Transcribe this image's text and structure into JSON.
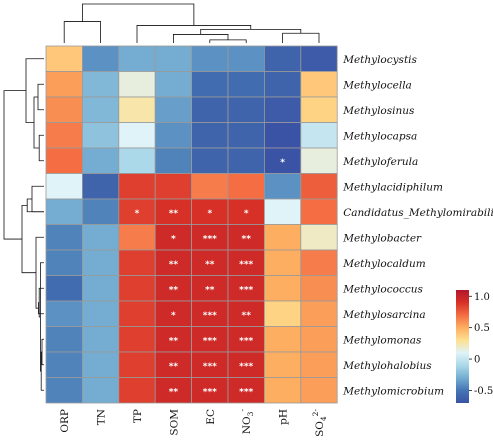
{
  "chart_data": {
    "type": "heatmap",
    "rows": [
      "Methylocystis",
      "Methylocella",
      "Methylosinus",
      "Methylocapsa",
      "Methyloferula",
      "Methylacidiphilum",
      "Candidatus_Methylomirabilis",
      "Methylobacter",
      "Methylocaldum",
      "Methylococcus",
      "Methylosarcina",
      "Methylomonas",
      "Methylohalobius",
      "Methylomicrobium"
    ],
    "columns": [
      {
        "text": "ORP"
      },
      {
        "text": "TN"
      },
      {
        "text": "TP"
      },
      {
        "text": "SOM"
      },
      {
        "text": "EC"
      },
      {
        "text": "NO",
        "sub": "3",
        "sup": "-"
      },
      {
        "text": "pH"
      },
      {
        "text": "SO",
        "sub": "4",
        "sup": "2-"
      }
    ],
    "values": [
      [
        0.4,
        -0.4,
        -0.3,
        -0.3,
        -0.4,
        -0.4,
        -0.6,
        -0.65
      ],
      [
        0.55,
        -0.25,
        0.15,
        -0.3,
        -0.55,
        -0.55,
        -0.6,
        0.4
      ],
      [
        0.6,
        -0.25,
        0.25,
        -0.35,
        -0.6,
        -0.6,
        -0.65,
        0.35
      ],
      [
        0.65,
        -0.2,
        0.1,
        -0.4,
        -0.6,
        -0.6,
        -0.7,
        0.0
      ],
      [
        0.7,
        -0.3,
        -0.1,
        -0.45,
        -0.6,
        -0.6,
        -0.8,
        0.15
      ],
      [
        0.1,
        -0.6,
        0.85,
        0.85,
        0.65,
        0.7,
        -0.4,
        0.75
      ],
      [
        -0.3,
        -0.45,
        0.85,
        0.9,
        0.9,
        0.9,
        0.1,
        0.7
      ],
      [
        -0.45,
        -0.3,
        0.65,
        0.95,
        0.95,
        0.95,
        0.5,
        0.2
      ],
      [
        -0.45,
        -0.3,
        0.85,
        0.95,
        0.95,
        0.95,
        0.5,
        0.65
      ],
      [
        -0.55,
        -0.3,
        0.85,
        0.95,
        0.95,
        0.95,
        0.5,
        0.6
      ],
      [
        -0.4,
        -0.3,
        0.85,
        0.95,
        0.95,
        0.95,
        0.35,
        0.55
      ],
      [
        -0.45,
        -0.3,
        0.85,
        0.95,
        0.95,
        0.95,
        0.5,
        0.55
      ],
      [
        -0.45,
        -0.3,
        0.85,
        0.95,
        0.95,
        0.95,
        0.5,
        0.55
      ],
      [
        -0.45,
        -0.3,
        0.85,
        0.95,
        0.95,
        0.95,
        0.5,
        0.55
      ]
    ],
    "significance": [
      [
        "",
        "",
        "",
        "",
        "",
        "",
        "",
        ""
      ],
      [
        "",
        "",
        "",
        "",
        "",
        "",
        "",
        ""
      ],
      [
        "",
        "",
        "",
        "",
        "",
        "",
        "",
        ""
      ],
      [
        "",
        "",
        "",
        "",
        "",
        "",
        "",
        ""
      ],
      [
        "",
        "",
        "",
        "",
        "",
        "",
        "*",
        ""
      ],
      [
        "",
        "",
        "",
        "",
        "",
        "",
        "",
        ""
      ],
      [
        "",
        "",
        "*",
        "**",
        "*",
        "*",
        "",
        ""
      ],
      [
        "",
        "",
        "",
        "*",
        "***",
        "**",
        "",
        ""
      ],
      [
        "",
        "",
        "",
        "**",
        "**",
        "***",
        "",
        ""
      ],
      [
        "",
        "",
        "",
        "**",
        "**",
        "***",
        "",
        ""
      ],
      [
        "",
        "",
        "",
        "*",
        "***",
        "**",
        "",
        ""
      ],
      [
        "",
        "",
        "",
        "**",
        "***",
        "***",
        "",
        ""
      ],
      [
        "",
        "",
        "",
        "**",
        "***",
        "***",
        "",
        ""
      ],
      [
        "",
        "",
        "",
        "**",
        "***",
        "***",
        "",
        ""
      ]
    ],
    "color_scale": {
      "min": -0.7,
      "max": 1.1,
      "ticks": [
        {
          "value": 1.0,
          "label": "1.0"
        },
        {
          "value": 0.5,
          "label": "0.5"
        },
        {
          "value": 0.0,
          "label": "0"
        },
        {
          "value": -0.5,
          "label": "-0.5"
        }
      ],
      "colors": [
        "#3a53a4",
        "#4575b4",
        "#74add1",
        "#abd9e9",
        "#e0f3f8",
        "#fee090",
        "#fdae61",
        "#f46d43",
        "#d73027",
        "#b2182b"
      ]
    },
    "column_dendrogram": {
      "merges": [
        [
          4,
          5
        ],
        [
          3,
          8
        ],
        [
          6,
          7
        ],
        [
          9,
          10
        ],
        [
          2,
          11
        ],
        [
          0,
          1
        ],
        [
          12,
          13
        ]
      ],
      "heights": [
        0.08,
        0.22,
        0.25,
        0.35,
        0.45,
        0.55,
        1.0
      ]
    },
    "row_dendrogram": {
      "merges": [
        [
          11,
          12
        ],
        [
          13,
          14
        ],
        [
          8,
          15
        ],
        [
          9,
          16
        ],
        [
          10,
          17
        ],
        [
          7,
          18
        ],
        [
          5,
          6
        ],
        [
          6,
          20
        ],
        [
          19,
          21
        ],
        [
          3,
          4
        ],
        [
          1,
          2
        ],
        [
          23,
          24
        ],
        [
          0,
          25
        ],
        [
          22,
          26
        ]
      ],
      "heights": [
        0.05,
        0.07,
        0.09,
        0.12,
        0.14,
        0.2,
        0.3,
        0.42,
        0.55,
        0.12,
        0.15,
        0.25,
        0.45,
        1.0
      ]
    },
    "grid": false,
    "legend_placement": "bottom-right"
  }
}
